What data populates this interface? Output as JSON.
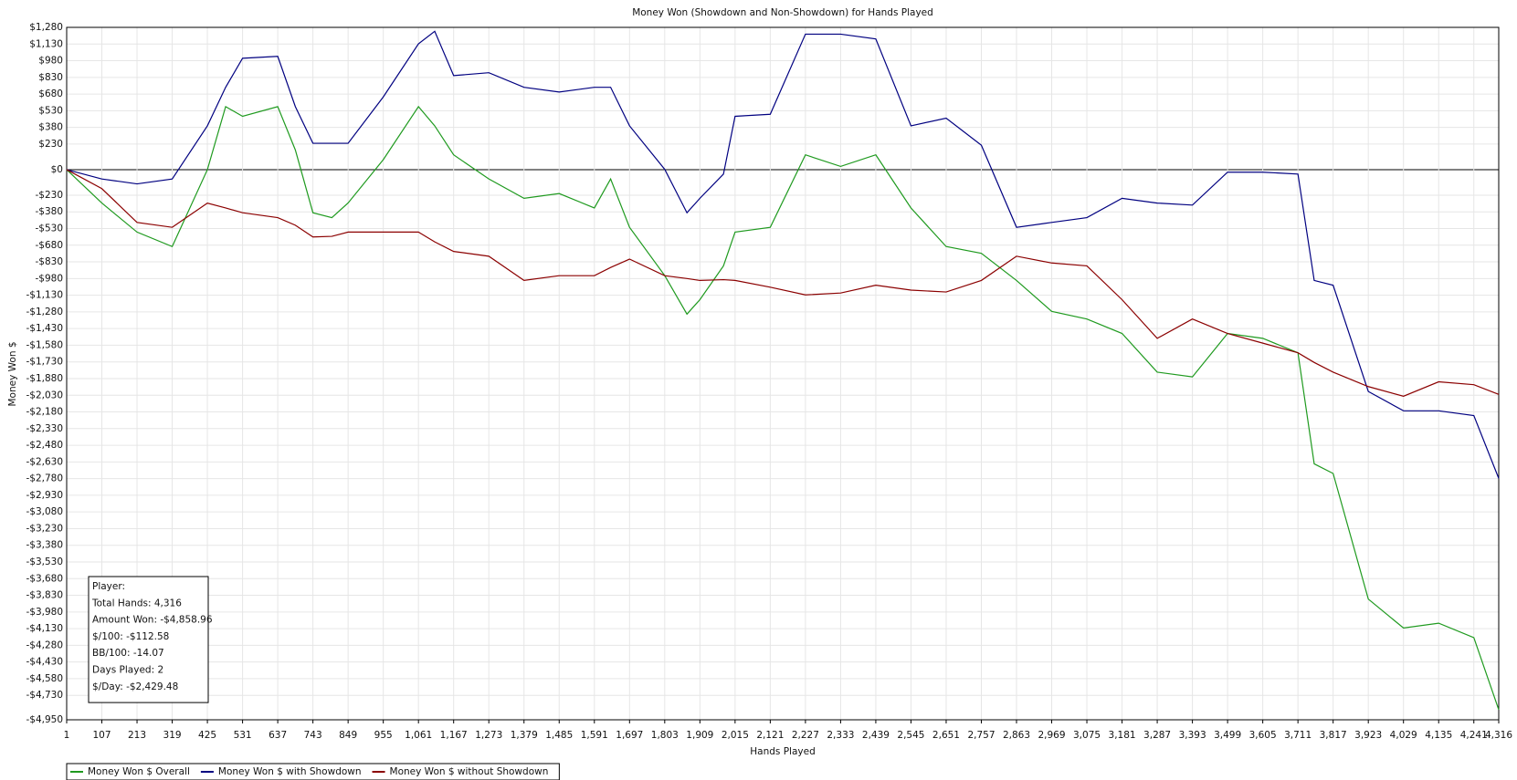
{
  "chart_data": {
    "type": "line",
    "title": "Money Won (Showdown and Non-Showdown) for Hands Played",
    "x_label": "Hands Played",
    "y_label": "Money Won $",
    "x": [
      1,
      107,
      213,
      319,
      425,
      480,
      531,
      637,
      690,
      743,
      800,
      849,
      955,
      1061,
      1110,
      1167,
      1273,
      1379,
      1485,
      1591,
      1640,
      1697,
      1803,
      1870,
      1909,
      1980,
      2015,
      2121,
      2227,
      2333,
      2439,
      2545,
      2651,
      2757,
      2863,
      2969,
      3075,
      3181,
      3287,
      3393,
      3499,
      3605,
      3711,
      3760,
      3817,
      3923,
      4029,
      4135,
      4241,
      4316
    ],
    "series": [
      {
        "name": "Money Won $ Overall",
        "color": "#1f9a1f",
        "values": [
          0,
          -301,
          -562,
          -692,
          0,
          567,
          480,
          567,
          177,
          -388,
          -432,
          -300,
          90,
          567,
          394,
          133,
          -84,
          -258,
          -215,
          -345,
          -84,
          -519,
          -953,
          -1300,
          -1170,
          -866,
          -562,
          -519,
          133,
          29,
          133,
          -345,
          -692,
          -753,
          -997,
          -1275,
          -1344,
          -1474,
          -1822,
          -1865,
          -1474,
          -1518,
          -1648,
          -2647,
          -2734,
          -3864,
          -4124,
          -4081,
          -4211,
          -4859
        ]
      },
      {
        "name": "Money Won $ with Showdown",
        "color": "#000080",
        "values": [
          0,
          -84,
          -128,
          -84,
          394,
          741,
          1002,
          1019,
          567,
          237,
          237,
          237,
          654,
          1132,
          1245,
          846,
          872,
          741,
          698,
          741,
          741,
          394,
          3,
          -388,
          -258,
          -40,
          480,
          498,
          1219,
          1219,
          1176,
          394,
          463,
          220,
          -519,
          -475,
          -432,
          -258,
          -301,
          -319,
          -23,
          -23,
          -40,
          -997,
          -1040,
          -1996,
          -2170,
          -2170,
          -2213,
          -2778
        ]
      },
      {
        "name": "Money Won $ without Showdown",
        "color": "#8b0000",
        "values": [
          0,
          -171,
          -475,
          -519,
          -301,
          -345,
          -388,
          -432,
          -500,
          -606,
          -600,
          -562,
          -562,
          -562,
          -650,
          -736,
          -779,
          -997,
          -954,
          -954,
          -880,
          -805,
          -954,
          -980,
          -997,
          -990,
          -997,
          -1058,
          -1127,
          -1110,
          -1040,
          -1084,
          -1101,
          -997,
          -779,
          -840,
          -866,
          -1170,
          -1518,
          -1344,
          -1474,
          -1561,
          -1648,
          -1735,
          -1822,
          -1952,
          -2039,
          -1909,
          -1935,
          -2022
        ]
      }
    ],
    "xlim": [
      1,
      4316
    ],
    "ylim": [
      -4950,
      1280
    ],
    "grid": true,
    "xticks": [
      1,
      107,
      213,
      319,
      425,
      531,
      637,
      743,
      849,
      955,
      {
        "value": 1061,
        "label": "1,061"
      },
      {
        "value": 1167,
        "label": "1,167"
      },
      {
        "value": 1273,
        "label": "1,273"
      },
      {
        "value": 1379,
        "label": "1,379"
      },
      {
        "value": 1485,
        "label": "1,485"
      },
      {
        "value": 1591,
        "label": "1,591"
      },
      {
        "value": 1697,
        "label": "1,697"
      },
      {
        "value": 1803,
        "label": "1,803"
      },
      {
        "value": 1909,
        "label": "1,909"
      },
      {
        "value": 2015,
        "label": "2,015"
      },
      {
        "value": 2121,
        "label": "2,121"
      },
      {
        "value": 2227,
        "label": "2,227"
      },
      {
        "value": 2333,
        "label": "2,333"
      },
      {
        "value": 2439,
        "label": "2,439"
      },
      {
        "value": 2545,
        "label": "2,545"
      },
      {
        "value": 2651,
        "label": "2,651"
      },
      {
        "value": 2757,
        "label": "2,757"
      },
      {
        "value": 2863,
        "label": "2,863"
      },
      {
        "value": 2969,
        "label": "2,969"
      },
      {
        "value": 3075,
        "label": "3,075"
      },
      {
        "value": 3181,
        "label": "3,181"
      },
      {
        "value": 3287,
        "label": "3,287"
      },
      {
        "value": 3393,
        "label": "3,393"
      },
      {
        "value": 3499,
        "label": "3,499"
      },
      {
        "value": 3605,
        "label": "3,605"
      },
      {
        "value": 3711,
        "label": "3,711"
      },
      {
        "value": 3817,
        "label": "3,817"
      },
      {
        "value": 3923,
        "label": "3,923"
      },
      {
        "value": 4029,
        "label": "4,029"
      },
      {
        "value": 4135,
        "label": "4,135"
      },
      {
        "value": 4241,
        "label": "4,241"
      },
      {
        "value": 4316,
        "label": "4,316"
      }
    ],
    "yticks": [
      {
        "value": 1280,
        "label": "$1,280"
      },
      {
        "value": 1130,
        "label": "$1,130"
      },
      {
        "value": 980,
        "label": "$980"
      },
      {
        "value": 830,
        "label": "$830"
      },
      {
        "value": 680,
        "label": "$680"
      },
      {
        "value": 530,
        "label": "$530"
      },
      {
        "value": 380,
        "label": "$380"
      },
      {
        "value": 230,
        "label": "$230"
      },
      {
        "value": 0,
        "label": "$0"
      },
      {
        "value": -230,
        "label": "-$230"
      },
      {
        "value": -380,
        "label": "-$380"
      },
      {
        "value": -530,
        "label": "-$530"
      },
      {
        "value": -680,
        "label": "-$680"
      },
      {
        "value": -830,
        "label": "-$830"
      },
      {
        "value": -980,
        "label": "-$980"
      },
      {
        "value": -1130,
        "label": "-$1,130"
      },
      {
        "value": -1280,
        "label": "-$1,280"
      },
      {
        "value": -1430,
        "label": "-$1,430"
      },
      {
        "value": -1580,
        "label": "-$1,580"
      },
      {
        "value": -1730,
        "label": "-$1,730"
      },
      {
        "value": -1880,
        "label": "-$1,880"
      },
      {
        "value": -2030,
        "label": "-$2,030"
      },
      {
        "value": -2180,
        "label": "-$2,180"
      },
      {
        "value": -2330,
        "label": "-$2,330"
      },
      {
        "value": -2480,
        "label": "-$2,480"
      },
      {
        "value": -2630,
        "label": "-$2,630"
      },
      {
        "value": -2780,
        "label": "-$2,780"
      },
      {
        "value": -2930,
        "label": "-$2,930"
      },
      {
        "value": -3080,
        "label": "-$3,080"
      },
      {
        "value": -3230,
        "label": "-$3,230"
      },
      {
        "value": -3380,
        "label": "-$3,380"
      },
      {
        "value": -3530,
        "label": "-$3,530"
      },
      {
        "value": -3680,
        "label": "-$3,680"
      },
      {
        "value": -3830,
        "label": "-$3,830"
      },
      {
        "value": -3980,
        "label": "-$3,980"
      },
      {
        "value": -4130,
        "label": "-$4,130"
      },
      {
        "value": -4280,
        "label": "-$4,280"
      },
      {
        "value": -4430,
        "label": "-$4,430"
      },
      {
        "value": -4580,
        "label": "-$4,580"
      },
      {
        "value": -4730,
        "label": "-$4,730"
      },
      {
        "value": -4950,
        "label": "-$4,950"
      }
    ],
    "annotations": [
      "Player:",
      "Total Hands: 4,316",
      "Amount Won: -$4,858.96",
      "$/100: -$112.58",
      "BB/100: -14.07",
      "Days Played: 2",
      "$/Day: -$2,429.48"
    ]
  }
}
